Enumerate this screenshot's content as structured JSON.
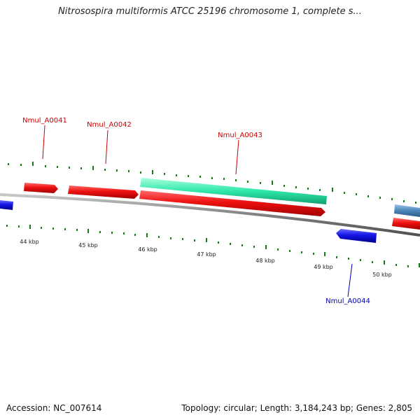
{
  "title": "Nitrosospira multiformis ATCC 25196 chromosome 1, complete s...",
  "footer": {
    "accession": "Accession: NC_007614",
    "summary": "Topology: circular; Length: 3,184,243 bp; Genes: 2,805"
  },
  "colors": {
    "forward_gene": "#ee1111",
    "reverse_gene": "#1515e6",
    "feature_teal": "#2ee8a8",
    "feature_steel": "#4a86b8",
    "backbone": "#808080",
    "tick": "#1a7a1a",
    "label_forward": "#cc0000",
    "label_reverse": "#0000aa"
  },
  "axis": {
    "ticks": [
      {
        "label": "44 kbp"
      },
      {
        "label": "45 kbp"
      },
      {
        "label": "46 kbp"
      },
      {
        "label": "47 kbp"
      },
      {
        "label": "48 kbp"
      },
      {
        "label": "49 kbp"
      },
      {
        "label": "50 kbp"
      }
    ]
  },
  "genes": [
    {
      "name": "Nmul_A0041",
      "strand": "forward"
    },
    {
      "name": "Nmul_A0042",
      "strand": "forward"
    },
    {
      "name": "Nmul_A0043",
      "strand": "forward"
    },
    {
      "name": "Nmul_A0044",
      "strand": "reverse"
    }
  ]
}
